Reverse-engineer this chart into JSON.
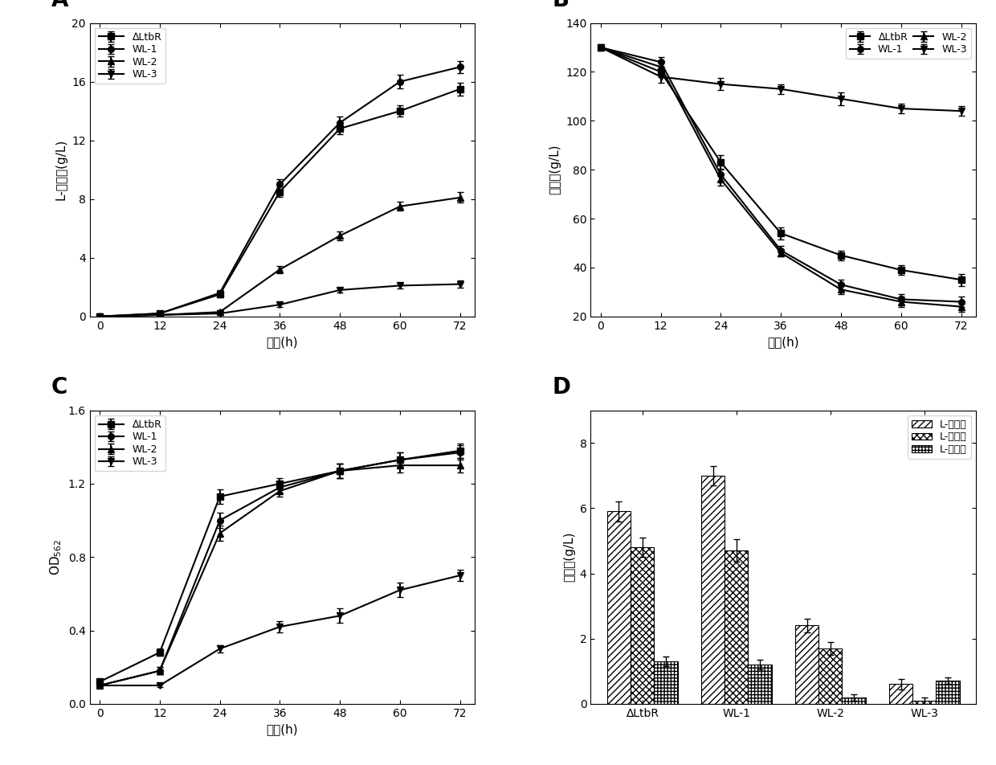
{
  "time_points": [
    0,
    12,
    24,
    36,
    48,
    60,
    72
  ],
  "A_ylabel": "L-亮氨酸(g/L)",
  "A_xlabel": "时间(h)",
  "A_ylim": [
    0,
    20
  ],
  "A_yticks": [
    0,
    4,
    8,
    12,
    16,
    20
  ],
  "A_data": {
    "DeltaLtbR": [
      0,
      0.2,
      1.5,
      8.5,
      12.8,
      14.0,
      15.5
    ],
    "WL1": [
      0,
      0.2,
      1.6,
      9.0,
      13.2,
      16.0,
      17.0
    ],
    "WL2": [
      0,
      0.1,
      0.3,
      3.2,
      5.5,
      7.5,
      8.1
    ],
    "WL3": [
      0,
      0.1,
      0.2,
      0.8,
      1.8,
      2.1,
      2.2
    ]
  },
  "A_err": {
    "DeltaLtbR": [
      0,
      0.15,
      0.2,
      0.35,
      0.4,
      0.4,
      0.45
    ],
    "WL1": [
      0,
      0.15,
      0.2,
      0.35,
      0.4,
      0.45,
      0.4
    ],
    "WL2": [
      0,
      0.1,
      0.15,
      0.25,
      0.3,
      0.3,
      0.35
    ],
    "WL3": [
      0,
      0.08,
      0.1,
      0.15,
      0.15,
      0.2,
      0.25
    ]
  },
  "B_ylabel": "葡萄糖(g/L)",
  "B_xlabel": "时间(h)",
  "B_ylim": [
    20,
    140
  ],
  "B_yticks": [
    20,
    40,
    60,
    80,
    100,
    120,
    140
  ],
  "B_data": {
    "DeltaLtbR": [
      130,
      120,
      83,
      54,
      45,
      39,
      35
    ],
    "WL1": [
      130,
      124,
      78,
      47,
      33,
      27,
      26
    ],
    "WL2": [
      130,
      122,
      76,
      46,
      31,
      26,
      24
    ],
    "WL3": [
      130,
      118,
      115,
      113,
      109,
      105,
      104
    ]
  },
  "B_err": {
    "DeltaLtbR": [
      0.5,
      2.0,
      3.0,
      2.5,
      2.0,
      2.0,
      2.5
    ],
    "WL1": [
      0.5,
      2.0,
      2.5,
      2.0,
      2.0,
      2.0,
      2.0
    ],
    "WL2": [
      0.5,
      2.0,
      2.5,
      1.5,
      2.0,
      2.0,
      2.0
    ],
    "WL3": [
      0.5,
      2.5,
      2.5,
      2.0,
      2.5,
      2.0,
      2.0
    ]
  },
  "C_ylabel": "OD₅₆₂",
  "C_xlabel": "时间(h)",
  "C_ylim": [
    0.0,
    1.6
  ],
  "C_yticks": [
    0.0,
    0.4,
    0.8,
    1.2,
    1.6
  ],
  "C_data": {
    "DeltaLtbR": [
      0.12,
      0.28,
      1.13,
      1.2,
      1.27,
      1.33,
      1.38
    ],
    "WL1": [
      0.1,
      0.18,
      1.0,
      1.18,
      1.27,
      1.33,
      1.37
    ],
    "WL2": [
      0.1,
      0.18,
      0.93,
      1.16,
      1.27,
      1.3,
      1.3
    ],
    "WL3": [
      0.1,
      0.1,
      0.3,
      0.42,
      0.48,
      0.62,
      0.7
    ]
  },
  "C_err": {
    "DeltaLtbR": [
      0.01,
      0.02,
      0.04,
      0.03,
      0.04,
      0.04,
      0.04
    ],
    "WL1": [
      0.01,
      0.02,
      0.04,
      0.03,
      0.04,
      0.04,
      0.04
    ],
    "WL2": [
      0.01,
      0.02,
      0.04,
      0.03,
      0.04,
      0.04,
      0.04
    ],
    "WL3": [
      0.01,
      0.01,
      0.02,
      0.03,
      0.04,
      0.04,
      0.03
    ]
  },
  "D_ylabel": "副产物(g/L)",
  "D_ylim": [
    0,
    9
  ],
  "D_yticks": [
    0,
    2,
    4,
    6,
    8
  ],
  "D_categories": [
    "∆LtbR",
    "WL-1",
    "WL-2",
    "WL-3"
  ],
  "D_legend": [
    "L-缬氨酸",
    "L-丙氨酸",
    "L-谷氨酸"
  ],
  "D_data": {
    "L_val": [
      5.9,
      7.0,
      2.4,
      0.6
    ],
    "L_ala": [
      4.8,
      4.7,
      1.7,
      0.1
    ],
    "L_glu": [
      1.3,
      1.2,
      0.2,
      0.7
    ]
  },
  "D_err": {
    "L_val": [
      0.3,
      0.3,
      0.2,
      0.15
    ],
    "L_ala": [
      0.3,
      0.35,
      0.2,
      0.1
    ],
    "L_glu": [
      0.15,
      0.15,
      0.1,
      0.1
    ]
  },
  "bg_color": "#ffffff",
  "markers": [
    "s",
    "o",
    "^",
    "v"
  ],
  "labels": [
    "∆LtbR",
    "WL-1",
    "WL-2",
    "WL-3"
  ]
}
